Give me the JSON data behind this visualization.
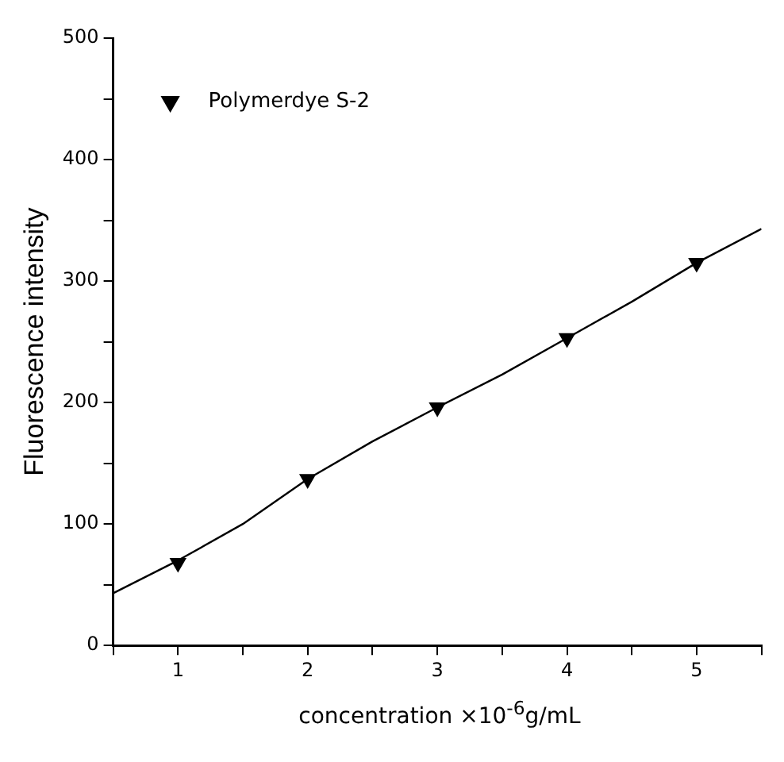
{
  "chart_data": {
    "type": "scatter",
    "xlabel": "concentration ×10$^{-6}$g/mL",
    "ylabel": "Fluorescence intensity",
    "xlim": [
      0.5,
      5.5
    ],
    "xticks": [
      {
        "value": 0.5,
        "label": null
      },
      1,
      {
        "value": 1.5,
        "label": null
      },
      2,
      {
        "value": 2.5,
        "label": null
      },
      3,
      {
        "value": 3.5,
        "label": null
      },
      4,
      {
        "value": 4.5,
        "label": null
      },
      5,
      {
        "value": 5.5,
        "label": null
      }
    ],
    "ylim": [
      0,
      500
    ],
    "yticks": [
      0,
      {
        "value": 50,
        "label": null
      },
      100,
      {
        "value": 150,
        "label": null
      },
      200,
      {
        "value": 250,
        "label": null
      },
      300,
      {
        "value": 350,
        "label": null
      },
      400,
      {
        "value": 450,
        "label": null
      },
      500
    ],
    "grid": false,
    "legend": "top left",
    "series": [
      {
        "name": "Polymerdye S-2",
        "color": "#000000",
        "marker": "triangle",
        "x": [
          1,
          2,
          3,
          4,
          5
        ],
        "values": [
          68,
          137,
          196,
          253,
          315
        ]
      },
      {
        "type": "line",
        "color": "#000000",
        "marker": "none",
        "line_style": "solid",
        "x": [
          0.5,
          1,
          1.5,
          2,
          2.5,
          3,
          3.5,
          4,
          4.5,
          5,
          5.5
        ],
        "values": [
          43,
          70,
          100,
          137,
          168,
          196,
          223,
          253,
          283,
          315,
          343
        ]
      }
    ]
  }
}
